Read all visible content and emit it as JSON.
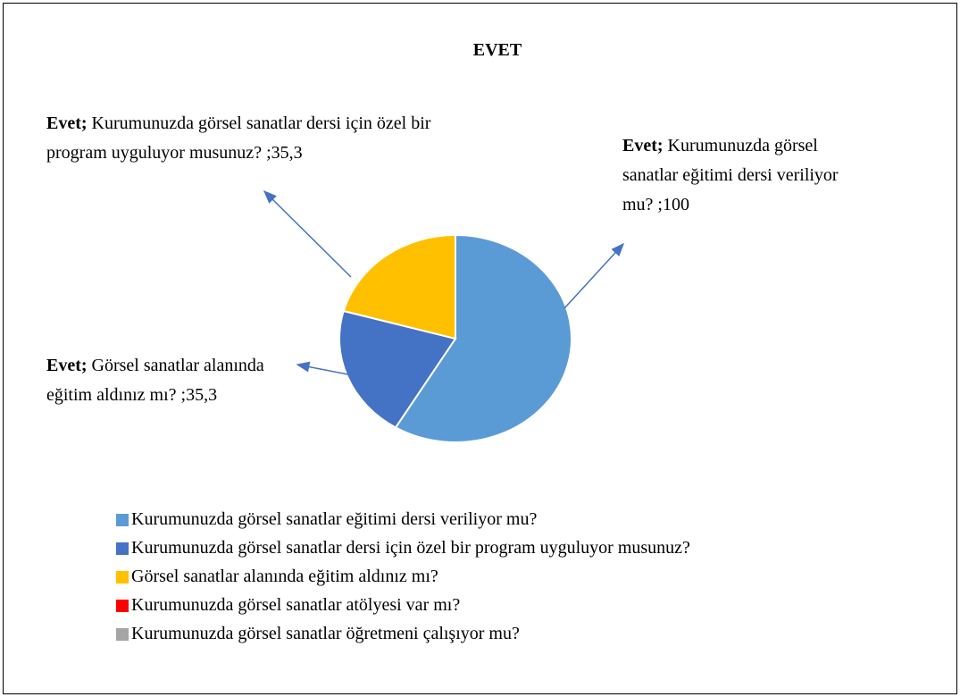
{
  "chart_data": {
    "type": "pie",
    "title": "EVET",
    "label_prefix": "Evet;",
    "categories": [
      "Kurumunuzda görsel sanatlar eğitimi dersi veriliyor mu?",
      "Kurumunuzda görsel sanatlar dersi için özel bir program uyguluyor musunuz?",
      "Görsel sanatlar alanında eğitim aldınız mı?",
      "Kurumunuzda görsel sanatlar atölyesi var mı?",
      "Kurumunuzda görsel sanatlar öğretmeni çalışıyor mu?"
    ],
    "values": [
      100,
      35.3,
      35.3,
      0,
      0
    ],
    "value_labels": [
      "Kurumunuzda görsel sanatlar eğitimi dersi veriliyor mu? ;100",
      "Kurumunuzda görsel sanatlar dersi için özel bir program uyguluyor musunuz? ;35,3",
      "Görsel sanatlar alanında eğitim aldınız mı? ;35,3",
      null,
      null
    ],
    "colors": [
      "#5b9bd5",
      "#4472c4",
      "#ffc000",
      "#ff0000",
      "#a5a5a5"
    ],
    "legend": "bottom"
  }
}
